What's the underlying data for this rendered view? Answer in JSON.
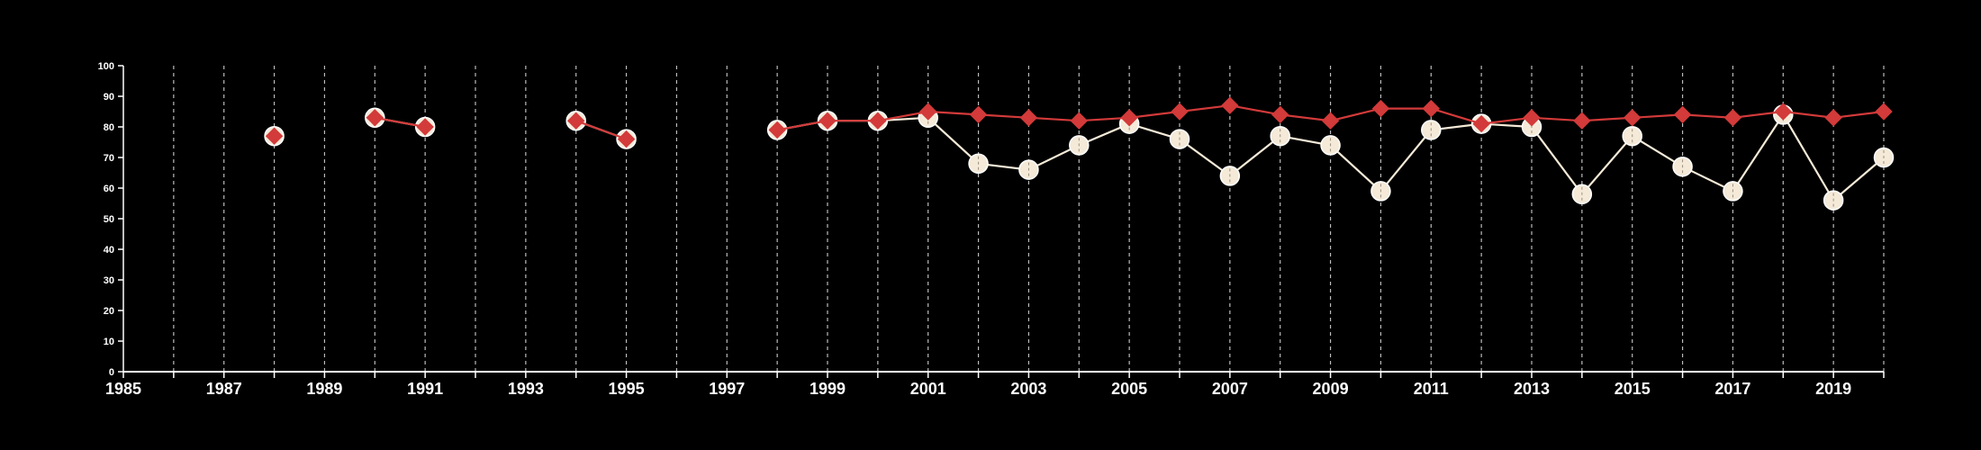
{
  "chart_data": {
    "type": "line",
    "title": "",
    "xlabel": "",
    "ylabel": "",
    "xlim": [
      1985,
      2020
    ],
    "ylim": [
      0,
      100
    ],
    "x_tick_labels": [
      "1985",
      "1987",
      "1989",
      "1991",
      "1993",
      "1995",
      "1997",
      "1999",
      "2001",
      "2003",
      "2005",
      "2007",
      "2009",
      "2011",
      "2013",
      "2015",
      "2017",
      "2019"
    ],
    "y_tick_labels": [
      "0",
      "10",
      "20",
      "30",
      "40",
      "50",
      "60",
      "70",
      "80",
      "90",
      "100"
    ],
    "grid": "vertical dashed lines at each year",
    "legend": "none",
    "colors": {
      "background": "#000000",
      "axis": "#ffffff",
      "grid": "#bbbbbb",
      "series_white": "#f5ead8",
      "series_red": "#d33a3a"
    },
    "series": [
      {
        "marker": "diamond",
        "color": "#d33a3a",
        "points": [
          [
            1988,
            77
          ],
          [
            1990,
            83
          ],
          [
            1991,
            80
          ],
          [
            1994,
            82
          ],
          [
            1995,
            76
          ],
          [
            1998,
            79
          ],
          [
            1999,
            82
          ],
          [
            2000,
            82
          ],
          [
            2001,
            85
          ],
          [
            2002,
            84
          ],
          [
            2003,
            83
          ],
          [
            2004,
            82
          ],
          [
            2005,
            83
          ],
          [
            2006,
            85
          ],
          [
            2007,
            87
          ],
          [
            2008,
            84
          ],
          [
            2009,
            82
          ],
          [
            2010,
            86
          ],
          [
            2011,
            86
          ],
          [
            2012,
            81
          ],
          [
            2013,
            83
          ],
          [
            2014,
            82
          ],
          [
            2015,
            83
          ],
          [
            2016,
            84
          ],
          [
            2017,
            83
          ],
          [
            2018,
            85
          ],
          [
            2019,
            83
          ],
          [
            2020,
            85
          ]
        ]
      },
      {
        "marker": "circle",
        "color": "#f5ead8",
        "points": [
          [
            1988,
            77
          ],
          [
            1990,
            83
          ],
          [
            1991,
            80
          ],
          [
            1994,
            82
          ],
          [
            1995,
            76
          ],
          [
            1998,
            79
          ],
          [
            1999,
            82
          ],
          [
            2000,
            82
          ],
          [
            2001,
            83
          ],
          [
            2002,
            68
          ],
          [
            2003,
            66
          ],
          [
            2004,
            74
          ],
          [
            2005,
            81
          ],
          [
            2006,
            76
          ],
          [
            2007,
            64
          ],
          [
            2008,
            77
          ],
          [
            2009,
            74
          ],
          [
            2010,
            59
          ],
          [
            2011,
            79
          ],
          [
            2012,
            81
          ],
          [
            2013,
            80
          ],
          [
            2014,
            58
          ],
          [
            2015,
            77
          ],
          [
            2016,
            67
          ],
          [
            2017,
            59
          ],
          [
            2018,
            84
          ],
          [
            2019,
            56
          ],
          [
            2020,
            70
          ]
        ]
      }
    ]
  }
}
